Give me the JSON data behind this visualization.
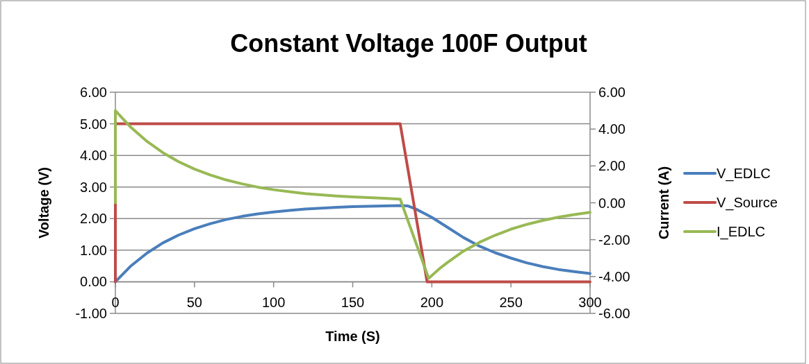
{
  "chart_data": {
    "type": "line",
    "title": "Constant Voltage 100F Output",
    "xlabel": "Time (S)",
    "ylabel": "Voltage (V)",
    "y2label": "Current (A)",
    "xlim": [
      0,
      300
    ],
    "xticks": [
      0,
      50,
      100,
      150,
      200,
      250,
      300
    ],
    "ylim": [
      -1,
      6
    ],
    "yticks": [
      {
        "value": -1,
        "label": "-1.00"
      },
      {
        "value": 0,
        "label": "0.00"
      },
      {
        "value": 1,
        "label": "1.00"
      },
      {
        "value": 2,
        "label": "2.00"
      },
      {
        "value": 3,
        "label": "3.00"
      },
      {
        "value": 4,
        "label": "4.00"
      },
      {
        "value": 5,
        "label": "5.00"
      },
      {
        "value": 6,
        "label": "6.00"
      }
    ],
    "y2lim": [
      -6,
      6
    ],
    "y2ticks": [
      {
        "value": -6,
        "label": "-6.00"
      },
      {
        "value": -4,
        "label": "-4.00"
      },
      {
        "value": -2,
        "label": "-2.00"
      },
      {
        "value": 0,
        "label": "0.00"
      },
      {
        "value": 2,
        "label": "2.00"
      },
      {
        "value": 4,
        "label": "4.00"
      },
      {
        "value": 6,
        "label": "6.00"
      }
    ],
    "grid": "y",
    "legend": "right",
    "marker": "none",
    "line_style": "solid",
    "series": [
      {
        "name": "V_EDLC",
        "color": "#4a7ebb",
        "x": [
          0,
          10,
          20,
          30,
          40,
          50,
          60,
          70,
          80,
          90,
          100,
          110,
          120,
          130,
          140,
          150,
          160,
          170,
          180,
          185,
          190,
          195,
          200,
          210,
          220,
          230,
          240,
          250,
          260,
          270,
          280,
          290,
          300
        ],
        "values": [
          0,
          0.51,
          0.91,
          1.23,
          1.48,
          1.68,
          1.84,
          1.97,
          2.07,
          2.15,
          2.21,
          2.26,
          2.3,
          2.33,
          2.36,
          2.38,
          2.39,
          2.4,
          2.41,
          2.4,
          2.3,
          2.17,
          2.04,
          1.72,
          1.4,
          1.13,
          0.92,
          0.75,
          0.6,
          0.48,
          0.39,
          0.32,
          0.26
        ]
      },
      {
        "name": "V_Source",
        "color": "#be4b48",
        "x": [
          0,
          0,
          180,
          197,
          300
        ],
        "values": [
          0,
          5,
          5,
          0,
          0
        ]
      },
      {
        "name": "I_EDLC",
        "color": "#98b954",
        "axis": "y2",
        "x": [
          0,
          0,
          10,
          20,
          30,
          40,
          50,
          60,
          70,
          80,
          90,
          100,
          110,
          120,
          130,
          140,
          150,
          160,
          170,
          180,
          198,
          205,
          210,
          220,
          230,
          240,
          250,
          260,
          270,
          280,
          290,
          300
        ],
        "values": [
          0,
          5.0,
          4.08,
          3.33,
          2.72,
          2.23,
          1.83,
          1.51,
          1.24,
          1.03,
          0.85,
          0.71,
          0.6,
          0.5,
          0.43,
          0.37,
          0.32,
          0.28,
          0.24,
          0.2,
          -4.1,
          -3.56,
          -3.23,
          -2.62,
          -2.15,
          -1.76,
          -1.43,
          -1.17,
          -0.96,
          -0.78,
          -0.64,
          -0.52
        ]
      }
    ]
  }
}
